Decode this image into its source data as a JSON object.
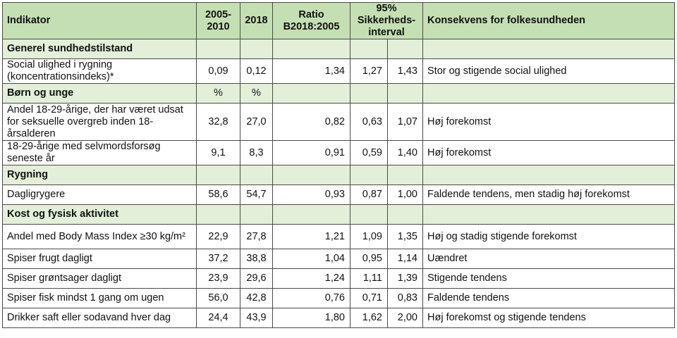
{
  "headers": {
    "indikator": "Indikator",
    "period": "2005-2010",
    "year": "2018",
    "ratio": "Ratio B2018:2005",
    "ci": "95% Sikkerheds-interval",
    "konsekvens": "Konsekvens for folkesundheden"
  },
  "sections": [
    {
      "title": "Generel sundhedstilstand",
      "unit_a": "",
      "unit_b": "",
      "rows": [
        {
          "indikator": "Social ulighed i rygning (koncentrationsindeks)*",
          "a": "0,09",
          "b": "0,12",
          "ratio": "1,34",
          "ci_low": "1,27",
          "ci_high": "1,43",
          "konsekvens": "Stor og stigende social ulighed"
        }
      ]
    },
    {
      "title": "Børn og unge",
      "unit_a": "%",
      "unit_b": "%",
      "rows": [
        {
          "indikator": "Andel 18-29-årige, der har været udsat for seksuelle overgreb inden 18-årsalderen",
          "a": "32,8",
          "b": "27,0",
          "ratio": "0,82",
          "ci_low": "0,63",
          "ci_high": "1,07",
          "konsekvens": "Høj forekomst"
        },
        {
          "indikator": "18-29-årige med selvmordsforsøg seneste år",
          "a": "9,1",
          "b": "8,3",
          "ratio": "0,91",
          "ci_low": "0,59",
          "ci_high": "1,40",
          "konsekvens": "Høj forekomst"
        }
      ]
    },
    {
      "title": "Rygning",
      "unit_a": "",
      "unit_b": "",
      "rows": [
        {
          "indikator": "Dagligrygere",
          "a": "58,6",
          "b": "54,7",
          "ratio": "0,93",
          "ci_low": "0,87",
          "ci_high": "1,00",
          "konsekvens": "Faldende tendens, men stadig høj forekomst"
        }
      ]
    },
    {
      "title": "Kost og fysisk aktivitet",
      "unit_a": "",
      "unit_b": "",
      "rows": [
        {
          "indikator": "Andel med Body Mass Index ≥30 kg/m²",
          "a": "22,9",
          "b": "27,8",
          "ratio": "1,21",
          "ci_low": "1,09",
          "ci_high": "1,35",
          "konsekvens": "Høj og stadig stigende forekomst"
        },
        {
          "indikator": "Spiser frugt dagligt",
          "a": "37,2",
          "b": "38,8",
          "ratio": "1,04",
          "ci_low": "0,95",
          "ci_high": "1,14",
          "konsekvens": "Uændret"
        },
        {
          "indikator": "Spiser grøntsager dagligt",
          "a": "23,9",
          "b": "29,6",
          "ratio": "1,24",
          "ci_low": "1,11",
          "ci_high": "1,39",
          "konsekvens": "Stigende tendens"
        },
        {
          "indikator": "Spiser fisk mindst 1 gang om ugen",
          "a": "56,0",
          "b": "42,8",
          "ratio": "0,76",
          "ci_low": "0,71",
          "ci_high": "0,83",
          "konsekvens": "Faldende tendens"
        },
        {
          "indikator": "Drikker saft eller sodavand hver dag",
          "a": "24,4",
          "b": "43,9",
          "ratio": "1,80",
          "ci_low": "1,62",
          "ci_high": "2,00",
          "konsekvens": "Høj forekomst og stigende tendens"
        }
      ]
    }
  ]
}
